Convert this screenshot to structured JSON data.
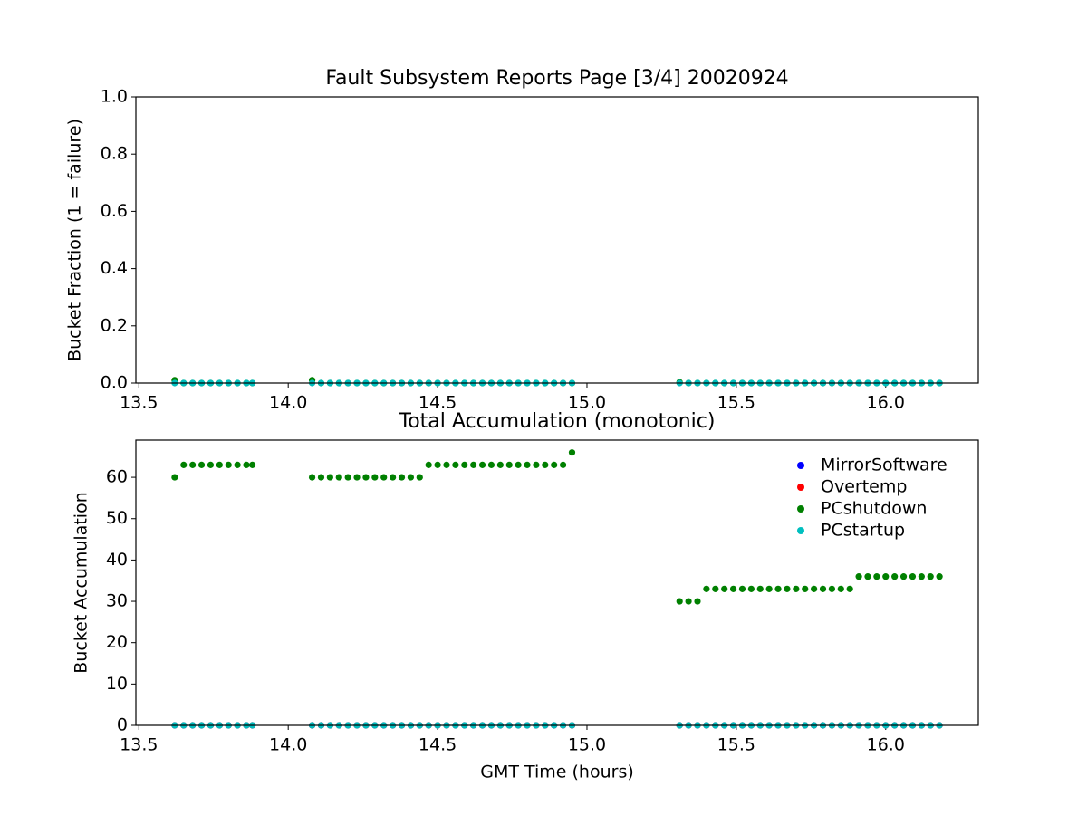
{
  "chart_data": [
    {
      "type": "scatter",
      "title": "Fault Subsystem Reports Page [3/4] 20020924",
      "y_label": "Bucket Fraction (1 = failure)",
      "x": [
        13.62,
        13.65,
        13.68,
        13.71,
        13.74,
        13.77,
        13.8,
        13.83,
        13.86,
        13.88,
        14.08,
        14.11,
        14.14,
        14.17,
        14.2,
        14.23,
        14.26,
        14.29,
        14.32,
        14.35,
        14.38,
        14.41,
        14.44,
        14.47,
        14.5,
        14.53,
        14.56,
        14.59,
        14.62,
        14.65,
        14.68,
        14.71,
        14.74,
        14.77,
        14.8,
        14.83,
        14.86,
        14.89,
        14.92,
        14.95,
        15.31,
        15.34,
        15.37,
        15.4,
        15.43,
        15.46,
        15.49,
        15.52,
        15.55,
        15.58,
        15.61,
        15.64,
        15.67,
        15.7,
        15.73,
        15.76,
        15.79,
        15.82,
        15.85,
        15.88,
        15.91,
        15.94,
        15.97,
        16.0,
        16.03,
        16.06,
        16.09,
        16.12,
        16.15,
        16.18
      ],
      "series": [
        {
          "color": "#008000",
          "values": [
            0.01,
            0,
            0,
            0,
            0,
            0,
            0,
            0,
            0,
            0,
            0.01,
            0,
            0,
            0,
            0,
            0,
            0,
            0,
            0,
            0,
            0,
            0,
            0,
            0,
            0,
            0,
            0,
            0,
            0,
            0,
            0,
            0,
            0,
            0,
            0,
            0,
            0,
            0,
            0,
            0,
            0.003,
            0,
            0,
            0,
            0,
            0,
            0,
            0,
            0,
            0,
            0,
            0,
            0,
            0,
            0,
            0,
            0,
            0,
            0,
            0,
            0,
            0,
            0,
            0,
            0,
            0,
            0,
            0,
            0,
            0
          ]
        },
        {
          "color": "#00bfbf",
          "values": [
            0,
            0,
            0,
            0,
            0,
            0,
            0,
            0,
            0,
            0,
            0,
            0,
            0,
            0,
            0,
            0,
            0,
            0,
            0,
            0,
            0,
            0,
            0,
            0,
            0,
            0,
            0,
            0,
            0,
            0,
            0,
            0,
            0,
            0,
            0,
            0,
            0,
            0,
            0,
            0,
            0,
            0,
            0,
            0,
            0,
            0,
            0,
            0,
            0,
            0,
            0,
            0,
            0,
            0,
            0,
            0,
            0,
            0,
            0,
            0,
            0,
            0,
            0,
            0,
            0,
            0,
            0,
            0,
            0,
            0
          ]
        }
      ],
      "xlim": [
        13.49,
        16.31
      ],
      "ylim": [
        0,
        1
      ],
      "xticks": [
        13.5,
        {
          "value": 14.0,
          "label": "14.0"
        },
        14.5,
        {
          "value": 15.0,
          "label": "15.0"
        },
        15.5,
        {
          "value": 16.0,
          "label": "16.0"
        }
      ],
      "yticks": [
        {
          "value": 0,
          "label": "0.0"
        },
        0.2,
        0.4,
        0.6,
        0.8,
        {
          "value": 1,
          "label": "1.0"
        }
      ]
    },
    {
      "type": "scatter",
      "title": "Total Accumulation (monotonic)",
      "x_label": "GMT Time (hours)",
      "y_label": "Bucket Accumulation",
      "x": [
        13.62,
        13.65,
        13.68,
        13.71,
        13.74,
        13.77,
        13.8,
        13.83,
        13.86,
        13.88,
        14.08,
        14.11,
        14.14,
        14.17,
        14.2,
        14.23,
        14.26,
        14.29,
        14.32,
        14.35,
        14.38,
        14.41,
        14.44,
        14.47,
        14.5,
        14.53,
        14.56,
        14.59,
        14.62,
        14.65,
        14.68,
        14.71,
        14.74,
        14.77,
        14.8,
        14.83,
        14.86,
        14.89,
        14.92,
        14.95,
        15.31,
        15.34,
        15.37,
        15.4,
        15.43,
        15.46,
        15.49,
        15.52,
        15.55,
        15.58,
        15.61,
        15.64,
        15.67,
        15.7,
        15.73,
        15.76,
        15.79,
        15.82,
        15.85,
        15.88,
        15.91,
        15.94,
        15.97,
        16.0,
        16.03,
        16.06,
        16.09,
        16.12,
        16.15,
        16.18
      ],
      "series": [
        {
          "name": "MirrorSoftware",
          "color": "#0000ff",
          "values": [
            0,
            0,
            0,
            0,
            0,
            0,
            0,
            0,
            0,
            0,
            0,
            0,
            0,
            0,
            0,
            0,
            0,
            0,
            0,
            0,
            0,
            0,
            0,
            0,
            0,
            0,
            0,
            0,
            0,
            0,
            0,
            0,
            0,
            0,
            0,
            0,
            0,
            0,
            0,
            0,
            0,
            0,
            0,
            0,
            0,
            0,
            0,
            0,
            0,
            0,
            0,
            0,
            0,
            0,
            0,
            0,
            0,
            0,
            0,
            0,
            0,
            0,
            0,
            0,
            0,
            0,
            0,
            0,
            0,
            0
          ]
        },
        {
          "name": "Overtemp",
          "color": "#ff0000",
          "values": [
            0,
            0,
            0,
            0,
            0,
            0,
            0,
            0,
            0,
            0,
            0,
            0,
            0,
            0,
            0,
            0,
            0,
            0,
            0,
            0,
            0,
            0,
            0,
            0,
            0,
            0,
            0,
            0,
            0,
            0,
            0,
            0,
            0,
            0,
            0,
            0,
            0,
            0,
            0,
            0,
            0,
            0,
            0,
            0,
            0,
            0,
            0,
            0,
            0,
            0,
            0,
            0,
            0,
            0,
            0,
            0,
            0,
            0,
            0,
            0,
            0,
            0,
            0,
            0,
            0,
            0,
            0,
            0,
            0,
            0
          ]
        },
        {
          "name": "PCshutdown",
          "color": "#008000",
          "values": [
            60,
            63,
            63,
            63,
            63,
            63,
            63,
            63,
            63,
            63,
            60,
            60,
            60,
            60,
            60,
            60,
            60,
            60,
            60,
            60,
            60,
            60,
            60,
            63,
            63,
            63,
            63,
            63,
            63,
            63,
            63,
            63,
            63,
            63,
            63,
            63,
            63,
            63,
            63,
            66,
            30,
            30,
            30,
            33,
            33,
            33,
            33,
            33,
            33,
            33,
            33,
            33,
            33,
            33,
            33,
            33,
            33,
            33,
            33,
            33,
            36,
            36,
            36,
            36,
            36,
            36,
            36,
            36,
            36,
            36
          ]
        },
        {
          "name": "PCstartup",
          "color": "#00bfbf",
          "values": [
            0,
            0,
            0,
            0,
            0,
            0,
            0,
            0,
            0,
            0,
            0,
            0,
            0,
            0,
            0,
            0,
            0,
            0,
            0,
            0,
            0,
            0,
            0,
            0,
            0,
            0,
            0,
            0,
            0,
            0,
            0,
            0,
            0,
            0,
            0,
            0,
            0,
            0,
            0,
            0,
            0,
            0,
            0,
            0,
            0,
            0,
            0,
            0,
            0,
            0,
            0,
            0,
            0,
            0,
            0,
            0,
            0,
            0,
            0,
            0,
            0,
            0,
            0,
            0,
            0,
            0,
            0,
            0,
            0,
            0
          ]
        }
      ],
      "xlim": [
        13.49,
        16.31
      ],
      "ylim": [
        0,
        69
      ],
      "xticks": [
        13.5,
        {
          "value": 14.0,
          "label": "14.0"
        },
        14.5,
        {
          "value": 15.0,
          "label": "15.0"
        },
        15.5,
        {
          "value": 16.0,
          "label": "16.0"
        }
      ],
      "yticks": [
        0,
        10,
        20,
        30,
        40,
        50,
        60
      ],
      "legend": "upper right"
    }
  ]
}
